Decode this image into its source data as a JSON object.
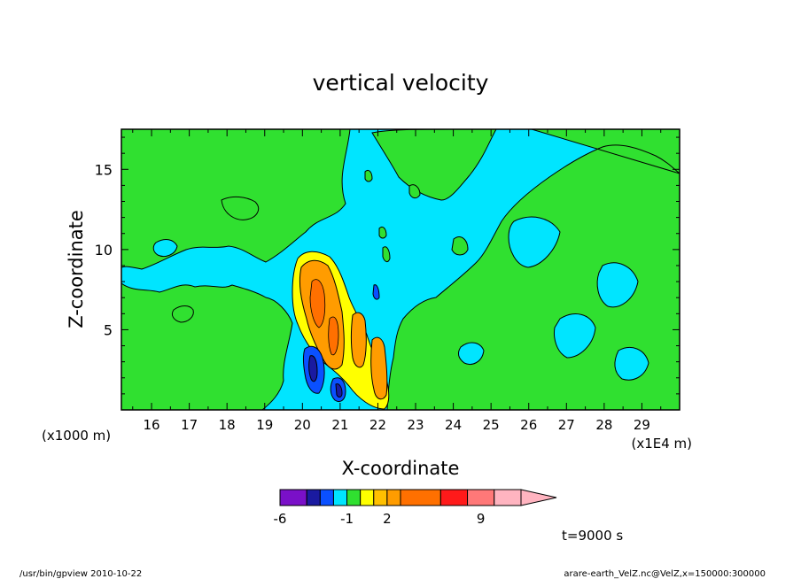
{
  "chart_data": {
    "type": "heatmap",
    "title": "vertical velocity",
    "xlabel": "X-coordinate",
    "ylabel": "Z-coordinate",
    "x_unit_left": "(x1000 m)",
    "x_unit_right": "(x1E4 m)",
    "xlim": [
      15.2,
      30.0
    ],
    "ylim": [
      0.0,
      17.5
    ],
    "x_ticks": [
      "16",
      "17",
      "18",
      "19",
      "20",
      "21",
      "22",
      "23",
      "24",
      "25",
      "26",
      "27",
      "28",
      "29"
    ],
    "x_tick_values": [
      16,
      17,
      18,
      19,
      20,
      21,
      22,
      23,
      24,
      25,
      26,
      27,
      28,
      29
    ],
    "y_ticks": [
      "5",
      "10",
      "15"
    ],
    "y_tick_values": [
      5,
      10,
      15
    ],
    "grid": false,
    "time_label": "t=9000 s",
    "colorbar": {
      "labels": [
        "-6",
        "-1",
        "2",
        "9"
      ],
      "label_positions": [
        -6,
        -1,
        2,
        9
      ],
      "levels": [
        -6,
        -4,
        -3,
        -2,
        -1,
        0,
        1,
        2,
        3,
        6,
        8,
        10,
        12
      ],
      "colors": [
        "#7a10c8",
        "#1a1aa0",
        "#0a50ff",
        "#00e5ff",
        "#30e030",
        "#ffff00",
        "#ffc000",
        "#ff9c00",
        "#ff7000",
        "#ff1a1a",
        "#ff7878",
        "#ffb4c0"
      ]
    },
    "background_level_color": "#00e5ff",
    "features": [
      {
        "value": 0.5,
        "color": "#30e030",
        "x": [
          15.2,
          16.5
        ],
        "z": [
          8,
          17.5
        ]
      },
      {
        "value": 0.5,
        "color": "#30e030",
        "x": [
          22.5,
          26.0
        ],
        "z": [
          0,
          8
        ]
      },
      {
        "value": 0.5,
        "color": "#30e030",
        "x": [
          26.0,
          30.0
        ],
        "z": [
          4,
          14
        ]
      },
      {
        "value": 4.0,
        "color": "#ff9c00",
        "x": [
          19.7,
          21.0
        ],
        "z": [
          2,
          10
        ]
      },
      {
        "value": 3.0,
        "color": "#ffc000",
        "x": [
          21.4,
          22.1
        ],
        "z": [
          0.5,
          4.5
        ]
      },
      {
        "value": -3.0,
        "color": "#1a1aa0",
        "x": [
          19.9,
          20.3
        ],
        "z": [
          0.8,
          4.2
        ]
      },
      {
        "value": -2.0,
        "color": "#0a50ff",
        "x": [
          20.7,
          21.0
        ],
        "z": [
          0.2,
          1.6
        ]
      }
    ]
  },
  "footer": {
    "left": "/usr/bin/gpview   2010-10-22",
    "right": "arare-earth_VelZ.nc@VelZ,x=150000:300000"
  }
}
